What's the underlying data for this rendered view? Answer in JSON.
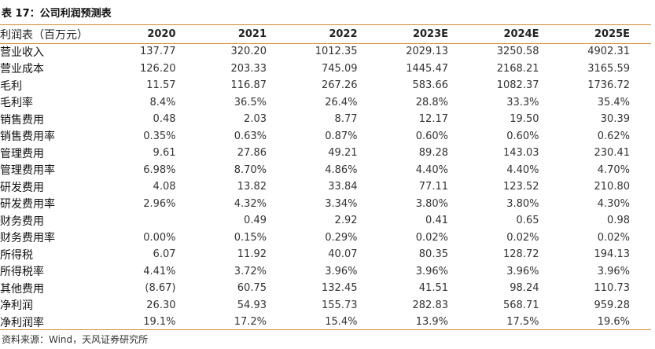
{
  "caption": "表 17：公司利润预测表",
  "header": {
    "label": "利润表（百万元）",
    "years": [
      "2020",
      "2021",
      "2022",
      "2023E",
      "2024E",
      "2025E"
    ]
  },
  "rows": [
    {
      "label": "营业收入",
      "values": [
        "137.77",
        "320.20",
        "1012.35",
        "2029.13",
        "3250.58",
        "4902.31"
      ]
    },
    {
      "label": "营业成本",
      "values": [
        "126.20",
        "203.33",
        "745.09",
        "1445.47",
        "2168.21",
        "3165.59"
      ]
    },
    {
      "label": "毛利",
      "values": [
        "11.57",
        "116.87",
        "267.26",
        "583.66",
        "1082.37",
        "1736.72"
      ]
    },
    {
      "label": "毛利率",
      "values": [
        "8.4%",
        "36.5%",
        "26.4%",
        "28.8%",
        "33.3%",
        "35.4%"
      ]
    },
    {
      "label": "销售费用",
      "values": [
        "0.48",
        "2.03",
        "8.77",
        "12.17",
        "19.50",
        "30.39"
      ]
    },
    {
      "label": "销售费用率",
      "values": [
        "0.35%",
        "0.63%",
        "0.87%",
        "0.60%",
        "0.60%",
        "0.62%"
      ]
    },
    {
      "label": "管理费用",
      "values": [
        "9.61",
        "27.86",
        "49.21",
        "89.28",
        "143.03",
        "230.41"
      ]
    },
    {
      "label": "管理费用率",
      "values": [
        "6.98%",
        "8.70%",
        "4.86%",
        "4.40%",
        "4.40%",
        "4.70%"
      ]
    },
    {
      "label": "研发费用",
      "values": [
        "4.08",
        "13.82",
        "33.84",
        "77.11",
        "123.52",
        "210.80"
      ]
    },
    {
      "label": "研发费用率",
      "values": [
        "2.96%",
        "4.32%",
        "3.34%",
        "3.80%",
        "3.80%",
        "4.30%"
      ]
    },
    {
      "label": "财务费用",
      "values": [
        "",
        "0.49",
        "2.92",
        "0.41",
        "0.65",
        "0.98"
      ]
    },
    {
      "label": "财务费用率",
      "values": [
        "0.00%",
        "0.15%",
        "0.29%",
        "0.02%",
        "0.02%",
        "0.02%"
      ]
    },
    {
      "label": "所得税",
      "values": [
        "6.07",
        "11.92",
        "40.07",
        "80.35",
        "128.72",
        "194.13"
      ]
    },
    {
      "label": "所得税率",
      "values": [
        "4.41%",
        "3.72%",
        "3.96%",
        "3.96%",
        "3.96%",
        "3.96%"
      ]
    },
    {
      "label": "其他费用",
      "values": [
        "(8.67)",
        "60.75",
        "132.45",
        "41.51",
        "98.24",
        "110.73"
      ]
    },
    {
      "label": "净利润",
      "values": [
        "26.30",
        "54.93",
        "155.73",
        "282.83",
        "568.71",
        "959.28"
      ]
    },
    {
      "label": "净利润率",
      "values": [
        "19.1%",
        "17.2%",
        "15.4%",
        "13.9%",
        "17.5%",
        "19.6%"
      ]
    }
  ],
  "source": "资料来源：Wind，天风证券研究所",
  "colors": {
    "rule": "#d48a3a"
  }
}
